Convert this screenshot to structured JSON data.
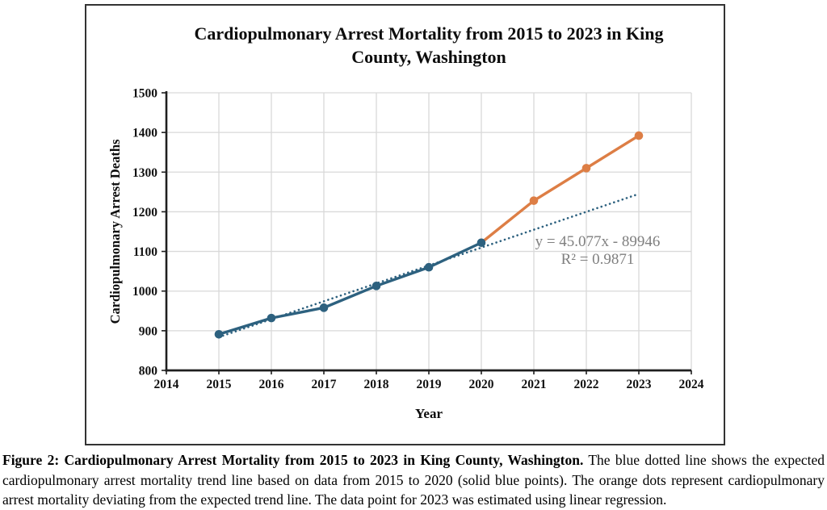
{
  "figure": {
    "caption_bold": "Figure 2: Cardiopulmonary Arrest Mortality from 2015 to 2023 in King County, Washington.",
    "caption_text": " The blue dotted line shows the expected cardiopulmonary arrest mortality trend line based on data from 2015 to 2020 (solid blue points). The orange dots represent cardiopulmonary arrest mortality deviating from the expected trend line. The data point for 2023 was estimated using linear regression."
  },
  "chart_data": {
    "type": "line",
    "title": "Cardiopulmonary Arrest Mortality from 2015 to 2023 in King County, Washington",
    "xlabel": "Year",
    "ylabel": "Cardiopulmonary Arrest Deaths",
    "xlim": [
      2014,
      2024
    ],
    "ylim": [
      800,
      1500
    ],
    "x_ticks": [
      2014,
      2015,
      2016,
      2017,
      2018,
      2019,
      2020,
      2021,
      2022,
      2023,
      2024
    ],
    "y_ticks": [
      800,
      900,
      1000,
      1100,
      1200,
      1300,
      1400,
      1500
    ],
    "grid": true,
    "legend": "none",
    "colors": {
      "blue": "#2D617F",
      "orange": "#DD7E45",
      "grid": "#D9D9D9",
      "axis": "#1F1F1F",
      "annotation": "#7F7F7F"
    },
    "series": [
      {
        "name": "solid blue points",
        "color": "#2D617F",
        "style": "solid",
        "markers": true,
        "x": [
          2015,
          2016,
          2017,
          2018,
          2019,
          2020
        ],
        "values": [
          891,
          932,
          958,
          1013,
          1060,
          1122
        ]
      },
      {
        "name": "orange dots",
        "color": "#DD7E45",
        "style": "solid",
        "markers": true,
        "marker_x": [
          2021,
          2022,
          2023
        ],
        "x": [
          2020,
          2021,
          2022,
          2023
        ],
        "values": [
          1122,
          1228,
          1310,
          1392
        ]
      },
      {
        "name": "expected trend line",
        "color": "#2D617F",
        "style": "dotted",
        "markers": false,
        "x": [
          2015,
          2023
        ],
        "values": [
          884,
          1245
        ]
      }
    ],
    "annotation": {
      "equation": "y = 45.077x - 89946",
      "r_squared": "R² = 0.9871"
    }
  }
}
